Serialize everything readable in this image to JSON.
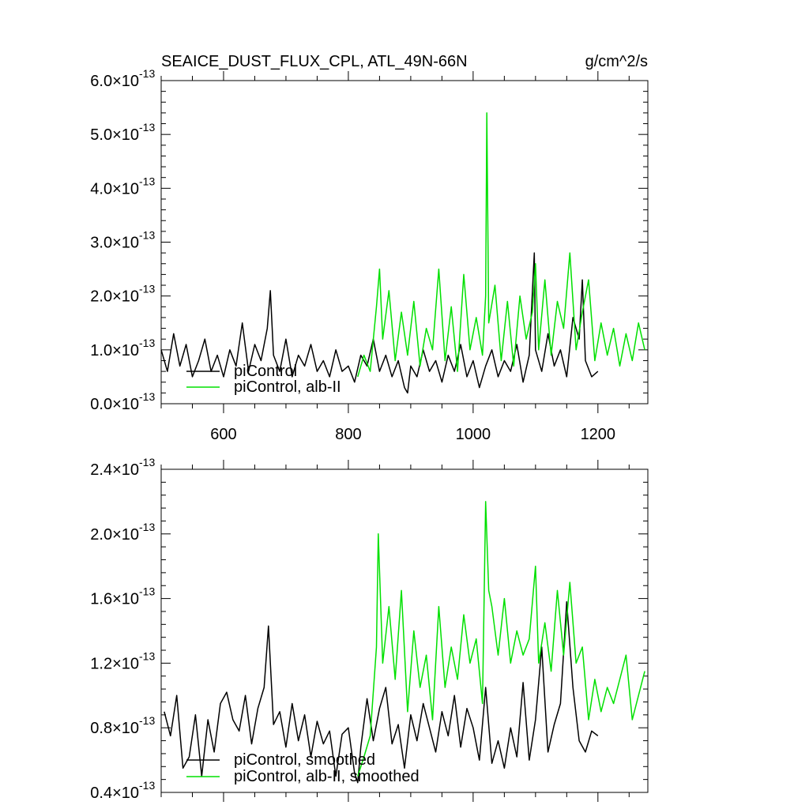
{
  "header": {
    "title": "SEAICE_DUST_FLUX_CPL, ATL_49N-66N",
    "units": "g/cm^2/s"
  },
  "chart_data": [
    {
      "type": "line",
      "title": "SEAICE_DUST_FLUX_CPL, ATL_49N-66N",
      "xlim": [
        500,
        1280
      ],
      "ylim": [
        0,
        6e-13
      ],
      "x_ticks": [
        600,
        800,
        1000,
        1200
      ],
      "x_tick_labels": [
        "600",
        "800",
        "1000",
        "1200"
      ],
      "y_ticks": [
        0,
        1e-13,
        2e-13,
        3e-13,
        4e-13,
        5e-13,
        6e-13
      ],
      "y_tick_labels": [
        {
          "mantissa": "0.0",
          "exp": "-13"
        },
        {
          "mantissa": "1.0",
          "exp": "-13"
        },
        {
          "mantissa": "2.0",
          "exp": "-13"
        },
        {
          "mantissa": "3.0",
          "exp": "-13"
        },
        {
          "mantissa": "4.0",
          "exp": "-13"
        },
        {
          "mantissa": "5.0",
          "exp": "-13"
        },
        {
          "mantissa": "6.0",
          "exp": "-13"
        }
      ],
      "legend": "bottom-left",
      "series": [
        {
          "name": "piControl",
          "color": "#000000",
          "x": [
            500,
            510,
            520,
            530,
            540,
            550,
            560,
            570,
            580,
            590,
            600,
            610,
            620,
            630,
            640,
            650,
            660,
            670,
            675,
            680,
            690,
            700,
            710,
            720,
            730,
            740,
            750,
            760,
            770,
            780,
            790,
            800,
            810,
            820,
            830,
            840,
            850,
            860,
            870,
            880,
            890,
            895,
            900,
            910,
            920,
            930,
            940,
            950,
            960,
            970,
            980,
            990,
            1000,
            1010,
            1020,
            1030,
            1040,
            1050,
            1060,
            1070,
            1080,
            1090,
            1098,
            1100,
            1110,
            1120,
            1130,
            1140,
            1150,
            1160,
            1170,
            1175,
            1180,
            1190,
            1200
          ],
          "values": [
            1e-13,
            6e-14,
            1.3e-13,
            7e-14,
            1.1e-13,
            5e-14,
            8e-14,
            1.2e-13,
            6e-14,
            9e-14,
            5e-14,
            1e-13,
            7e-14,
            1.5e-13,
            6e-14,
            1.1e-13,
            8e-14,
            1.4e-13,
            2.1e-13,
            9e-14,
            6e-14,
            1.2e-13,
            5e-14,
            9e-14,
            7e-14,
            1.1e-13,
            6e-14,
            8e-14,
            5e-14,
            1e-13,
            6e-14,
            7e-14,
            4e-14,
            9e-14,
            7e-14,
            1.2e-13,
            6e-14,
            9e-14,
            5e-14,
            8e-14,
            3e-14,
            2e-14,
            7e-14,
            5e-14,
            1e-13,
            6e-14,
            8e-14,
            4e-14,
            9e-14,
            6e-14,
            1.1e-13,
            5e-14,
            8e-14,
            3e-14,
            7e-14,
            1e-13,
            5e-14,
            8e-14,
            6e-14,
            1.1e-13,
            4e-14,
            9e-14,
            2.8e-13,
            1e-13,
            6e-14,
            1.3e-13,
            7e-14,
            1e-13,
            5e-14,
            1.6e-13,
            1.2e-13,
            2.3e-13,
            8e-14,
            5e-14,
            6e-14
          ]
        },
        {
          "name": "piControl, alb-II",
          "color": "#00e000",
          "x": [
            815,
            825,
            835,
            845,
            850,
            855,
            865,
            875,
            885,
            895,
            905,
            915,
            925,
            935,
            945,
            955,
            965,
            975,
            985,
            995,
            1005,
            1015,
            1020,
            1022,
            1025,
            1035,
            1045,
            1055,
            1065,
            1075,
            1085,
            1095,
            1100,
            1105,
            1115,
            1125,
            1135,
            1145,
            1155,
            1165,
            1175,
            1185,
            1195,
            1205,
            1215,
            1225,
            1235,
            1245,
            1255,
            1265,
            1275
          ],
          "values": [
            5e-14,
            9e-14,
            6e-14,
            1.8e-13,
            2.5e-13,
            1.2e-13,
            2.1e-13,
            8e-14,
            1.7e-13,
            9e-14,
            1.9e-13,
            7e-14,
            1.4e-13,
            1e-13,
            2.5e-13,
            8e-14,
            1.8e-13,
            6e-14,
            2.4e-13,
            1e-13,
            1.6e-13,
            9e-14,
            2e-13,
            5.4e-13,
            1.5e-13,
            2.2e-13,
            8e-14,
            1.9e-13,
            7e-14,
            2e-13,
            1.2e-13,
            1.7e-13,
            2.6e-13,
            1e-13,
            2.3e-13,
            9e-14,
            1.9e-13,
            1.4e-13,
            2.8e-13,
            1e-13,
            1.7e-13,
            2.3e-13,
            8e-14,
            1.5e-13,
            9e-14,
            1.4e-13,
            7e-14,
            1.3e-13,
            8e-14,
            1.5e-13,
            1e-13
          ]
        }
      ]
    },
    {
      "type": "line",
      "xlim": [
        500,
        1280
      ],
      "ylim": [
        4e-14,
        2.4e-13
      ],
      "x_ticks": [
        600,
        800,
        1000,
        1200
      ],
      "y_ticks": [
        4e-14,
        8e-14,
        1.2e-13,
        1.6e-13,
        2e-13,
        2.4e-13
      ],
      "y_tick_labels": [
        {
          "mantissa": "0.4",
          "exp": "-13"
        },
        {
          "mantissa": "0.8",
          "exp": "-13"
        },
        {
          "mantissa": "1.2",
          "exp": "-13"
        },
        {
          "mantissa": "1.6",
          "exp": "-13"
        },
        {
          "mantissa": "2.0",
          "exp": "-13"
        },
        {
          "mantissa": "2.4",
          "exp": "-13"
        }
      ],
      "legend": "bottom-left",
      "series": [
        {
          "name": "piControl, smoothed",
          "color": "#000000",
          "x": [
            505,
            515,
            525,
            535,
            545,
            555,
            565,
            575,
            585,
            595,
            605,
            615,
            625,
            635,
            645,
            655,
            665,
            672,
            680,
            690,
            700,
            710,
            720,
            730,
            740,
            750,
            760,
            770,
            780,
            790,
            800,
            810,
            815,
            820,
            830,
            840,
            850,
            860,
            870,
            880,
            890,
            900,
            910,
            920,
            930,
            940,
            950,
            960,
            970,
            980,
            990,
            1000,
            1010,
            1020,
            1030,
            1040,
            1050,
            1060,
            1070,
            1080,
            1090,
            1100,
            1110,
            1120,
            1130,
            1140,
            1150,
            1160,
            1170,
            1180,
            1190,
            1200
          ],
          "values": [
            9e-14,
            7.5e-14,
            1e-13,
            5.5e-14,
            6.2e-14,
            8.8e-14,
            5e-14,
            8.5e-14,
            6.5e-14,
            9.5e-14,
            1.02e-13,
            8.5e-14,
            7.8e-14,
            1e-13,
            7e-14,
            9.2e-14,
            1.05e-13,
            1.43e-13,
            8.2e-14,
            9e-14,
            6.8e-14,
            9.5e-14,
            7.2e-14,
            8.8e-14,
            6.2e-14,
            8.4e-14,
            7e-14,
            7.8e-14,
            5e-14,
            7.6e-14,
            8e-14,
            5.2e-14,
            4.6e-14,
            6.8e-14,
            9.8e-14,
            7.2e-14,
            9.2e-14,
            1.05e-13,
            7e-14,
            8.2e-14,
            5.5e-14,
            8.8e-14,
            7.2e-14,
            9.5e-14,
            8e-14,
            6.5e-14,
            9e-14,
            7.5e-14,
            1e-13,
            6.8e-14,
            9.2e-14,
            8e-14,
            6e-14,
            1.05e-13,
            5.8e-14,
            7.2e-14,
            5.5e-14,
            8e-14,
            6.2e-14,
            1.08e-13,
            6e-14,
            8.5e-14,
            1.3e-13,
            6.5e-14,
            8.2e-14,
            9.5e-14,
            1.58e-13,
            1.05e-13,
            7.2e-14,
            6.5e-14,
            7.8e-14,
            7.5e-14
          ]
        },
        {
          "name": "piControl, alb-II, smoothed",
          "color": "#00e000",
          "x": [
            815,
            825,
            835,
            845,
            848,
            855,
            865,
            875,
            885,
            895,
            905,
            915,
            925,
            935,
            945,
            955,
            965,
            975,
            985,
            995,
            1005,
            1015,
            1020,
            1025,
            1030,
            1040,
            1050,
            1060,
            1070,
            1080,
            1090,
            1100,
            1105,
            1115,
            1125,
            1135,
            1145,
            1155,
            1165,
            1175,
            1185,
            1195,
            1205,
            1215,
            1225,
            1235,
            1245,
            1255,
            1265,
            1275
          ],
          "values": [
            5e-14,
            6.2e-14,
            7.5e-14,
            1.3e-13,
            2e-13,
            1.2e-13,
            1.55e-13,
            1.1e-13,
            1.65e-13,
            9e-14,
            1.4e-13,
            1.05e-13,
            1.25e-13,
            8.5e-14,
            1.55e-13,
            1.05e-13,
            1.3e-13,
            1.1e-13,
            1.5e-13,
            1.2e-13,
            1.35e-13,
            9.5e-14,
            2.2e-13,
            1.65e-13,
            1.55e-13,
            1.25e-13,
            1.6e-13,
            1.2e-13,
            1.4e-13,
            1.25e-13,
            1.35e-13,
            1.8e-13,
            1.2e-13,
            1.45e-13,
            1.15e-13,
            1.65e-13,
            1.25e-13,
            1.7e-13,
            1.2e-13,
            1.3e-13,
            8.5e-14,
            1.1e-13,
            9e-14,
            1.05e-13,
            9.5e-14,
            1.1e-13,
            1.25e-13,
            8.5e-14,
            1e-13,
            1.15e-13
          ]
        }
      ]
    }
  ]
}
